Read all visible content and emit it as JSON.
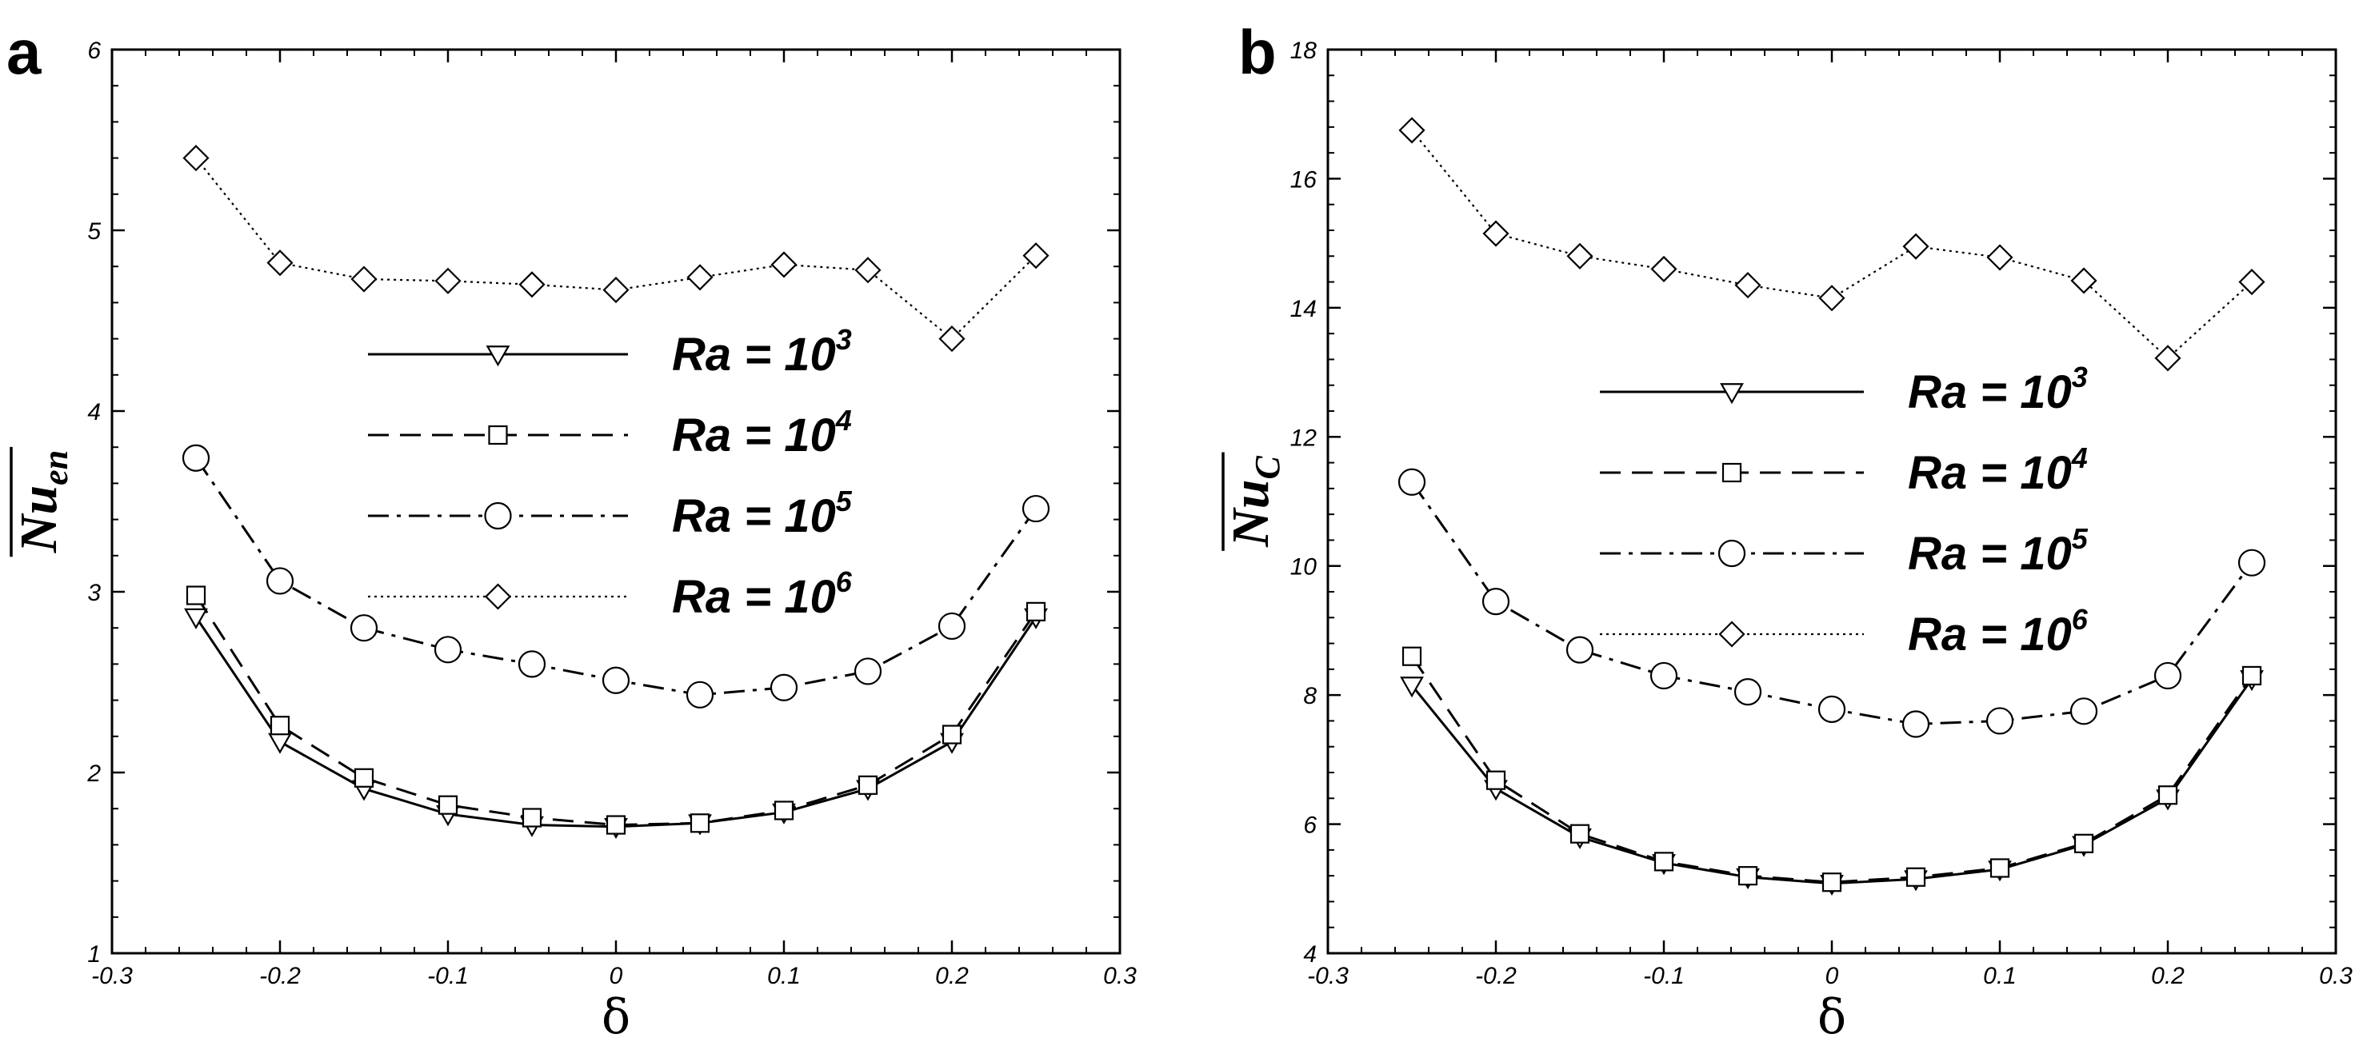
{
  "chart_data": [
    {
      "type": "line",
      "panel_letter": "a",
      "xlabel": "δ",
      "ylabel_main": "Nu",
      "ylabel_sub": "en",
      "xlim": [
        -0.3,
        0.3
      ],
      "ylim": [
        1,
        6
      ],
      "x_ticks": [
        -0.3,
        -0.2,
        -0.1,
        0,
        0.1,
        0.2,
        0.3
      ],
      "x_tick_labels": [
        "-0.3",
        "-0.2",
        "-0.1",
        "0",
        "0.1",
        "0.2",
        "0.3"
      ],
      "y_ticks": [
        1,
        2,
        3,
        4,
        5,
        6
      ],
      "y_tick_labels": [
        "1",
        "2",
        "3",
        "4",
        "5",
        "6"
      ],
      "legend_position": "center",
      "x": [
        -0.25,
        -0.2,
        -0.15,
        -0.1,
        -0.05,
        0,
        0.05,
        0.1,
        0.15,
        0.2,
        0.25
      ],
      "series": [
        {
          "name": "Ra = 10^3",
          "label_base": "Ra = 10",
          "label_exp": "3",
          "marker": "triangle-down",
          "line": "solid",
          "values": [
            2.86,
            2.17,
            1.91,
            1.77,
            1.71,
            1.7,
            1.72,
            1.78,
            1.91,
            2.17,
            2.86
          ]
        },
        {
          "name": "Ra = 10^4",
          "label_base": "Ra = 10",
          "label_exp": "4",
          "marker": "square",
          "line": "dashed",
          "values": [
            2.98,
            2.26,
            1.97,
            1.82,
            1.75,
            1.71,
            1.72,
            1.79,
            1.93,
            2.21,
            2.89
          ]
        },
        {
          "name": "Ra = 10^5",
          "label_base": "Ra = 10",
          "label_exp": "5",
          "marker": "circle",
          "line": "dashdot",
          "values": [
            3.74,
            3.06,
            2.8,
            2.68,
            2.6,
            2.51,
            2.43,
            2.47,
            2.56,
            2.81,
            3.46
          ]
        },
        {
          "name": "Ra = 10^6",
          "label_base": "Ra = 10",
          "label_exp": "6",
          "marker": "diamond",
          "line": "dotted",
          "values": [
            5.4,
            4.82,
            4.73,
            4.72,
            4.7,
            4.67,
            4.74,
            4.81,
            4.78,
            4.4,
            4.86
          ]
        }
      ]
    },
    {
      "type": "line",
      "panel_letter": "b",
      "xlabel": "δ",
      "ylabel_main": "Nu",
      "ylabel_sub": "C",
      "xlim": [
        -0.3,
        0.3
      ],
      "ylim": [
        4,
        18
      ],
      "x_ticks": [
        -0.3,
        -0.2,
        -0.1,
        0,
        0.1,
        0.2,
        0.3
      ],
      "x_tick_labels": [
        "-0.3",
        "-0.2",
        "-0.1",
        "0",
        "0.1",
        "0.2",
        "0.3"
      ],
      "y_ticks": [
        4,
        6,
        8,
        10,
        12,
        14,
        16,
        18
      ],
      "y_tick_labels": [
        "4",
        "6",
        "8",
        "10",
        "12",
        "14",
        "16",
        "18"
      ],
      "legend_position": "center",
      "x": [
        -0.25,
        -0.2,
        -0.15,
        -0.1,
        -0.05,
        0,
        0.05,
        0.1,
        0.15,
        0.2,
        0.25
      ],
      "series": [
        {
          "name": "Ra = 10^3",
          "label_base": "Ra = 10",
          "label_exp": "3",
          "marker": "triangle-down",
          "line": "solid",
          "values": [
            8.15,
            6.55,
            5.8,
            5.4,
            5.18,
            5.08,
            5.15,
            5.3,
            5.68,
            6.4,
            8.25
          ]
        },
        {
          "name": "Ra = 10^4",
          "label_base": "Ra = 10",
          "label_exp": "4",
          "marker": "square",
          "line": "dashed",
          "values": [
            8.6,
            6.68,
            5.85,
            5.42,
            5.2,
            5.1,
            5.18,
            5.32,
            5.7,
            6.45,
            8.3
          ]
        },
        {
          "name": "Ra = 10^5",
          "label_base": "Ra = 10",
          "label_exp": "5",
          "marker": "circle",
          "line": "dashdot",
          "values": [
            11.3,
            9.45,
            8.7,
            8.3,
            8.05,
            7.78,
            7.55,
            7.6,
            7.75,
            8.3,
            10.05
          ]
        },
        {
          "name": "Ra = 10^6",
          "label_base": "Ra = 10",
          "label_exp": "6",
          "marker": "diamond",
          "line": "dotted",
          "values": [
            16.75,
            15.15,
            14.8,
            14.6,
            14.35,
            14.15,
            14.95,
            14.78,
            14.42,
            13.22,
            14.4
          ]
        }
      ]
    }
  ]
}
